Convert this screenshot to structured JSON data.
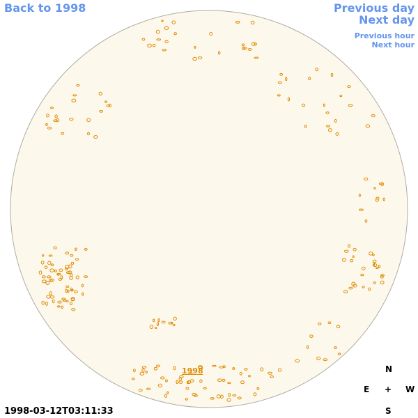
{
  "nav": {
    "back": "Back to 1998",
    "previous_day": "Previous day",
    "next_day": "Next day",
    "previous_hour": "Previous hour",
    "next_hour": "Next hour"
  },
  "image": {
    "year_link": "1998",
    "timestamp": "1998-03-12T03:11:33"
  },
  "compass": {
    "north": "N",
    "east": "E",
    "center": "+",
    "west": "W",
    "south": "S"
  }
}
